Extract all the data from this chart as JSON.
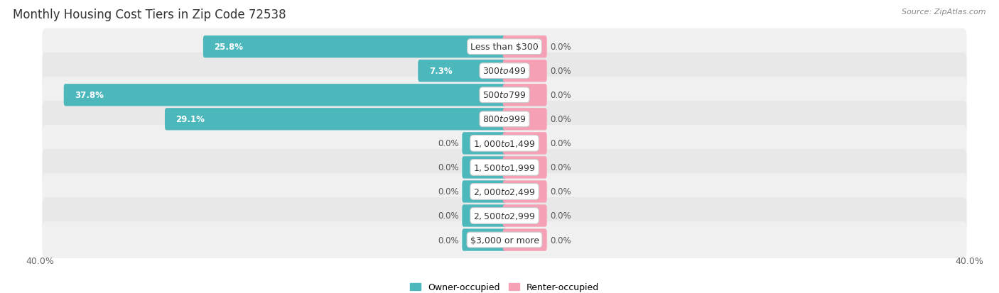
{
  "title": "Monthly Housing Cost Tiers in Zip Code 72538",
  "source": "Source: ZipAtlas.com",
  "categories": [
    "Less than $300",
    "$300 to $499",
    "$500 to $799",
    "$800 to $999",
    "$1,000 to $1,499",
    "$1,500 to $1,999",
    "$2,000 to $2,499",
    "$2,500 to $2,999",
    "$3,000 or more"
  ],
  "owner_values": [
    25.8,
    7.3,
    37.8,
    29.1,
    0.0,
    0.0,
    0.0,
    0.0,
    0.0
  ],
  "renter_values": [
    0.0,
    0.0,
    0.0,
    0.0,
    0.0,
    0.0,
    0.0,
    0.0,
    0.0
  ],
  "owner_color": "#4cb8bc",
  "renter_color": "#f5a0b5",
  "row_bg_colors": [
    "#f0f0f0",
    "#e8e8e8"
  ],
  "xlim": [
    -40.0,
    40.0
  ],
  "stub_size": 3.5,
  "title_fontsize": 12,
  "label_fontsize": 9,
  "value_fontsize": 8.5,
  "tick_fontsize": 9,
  "legend_fontsize": 9,
  "source_fontsize": 8
}
